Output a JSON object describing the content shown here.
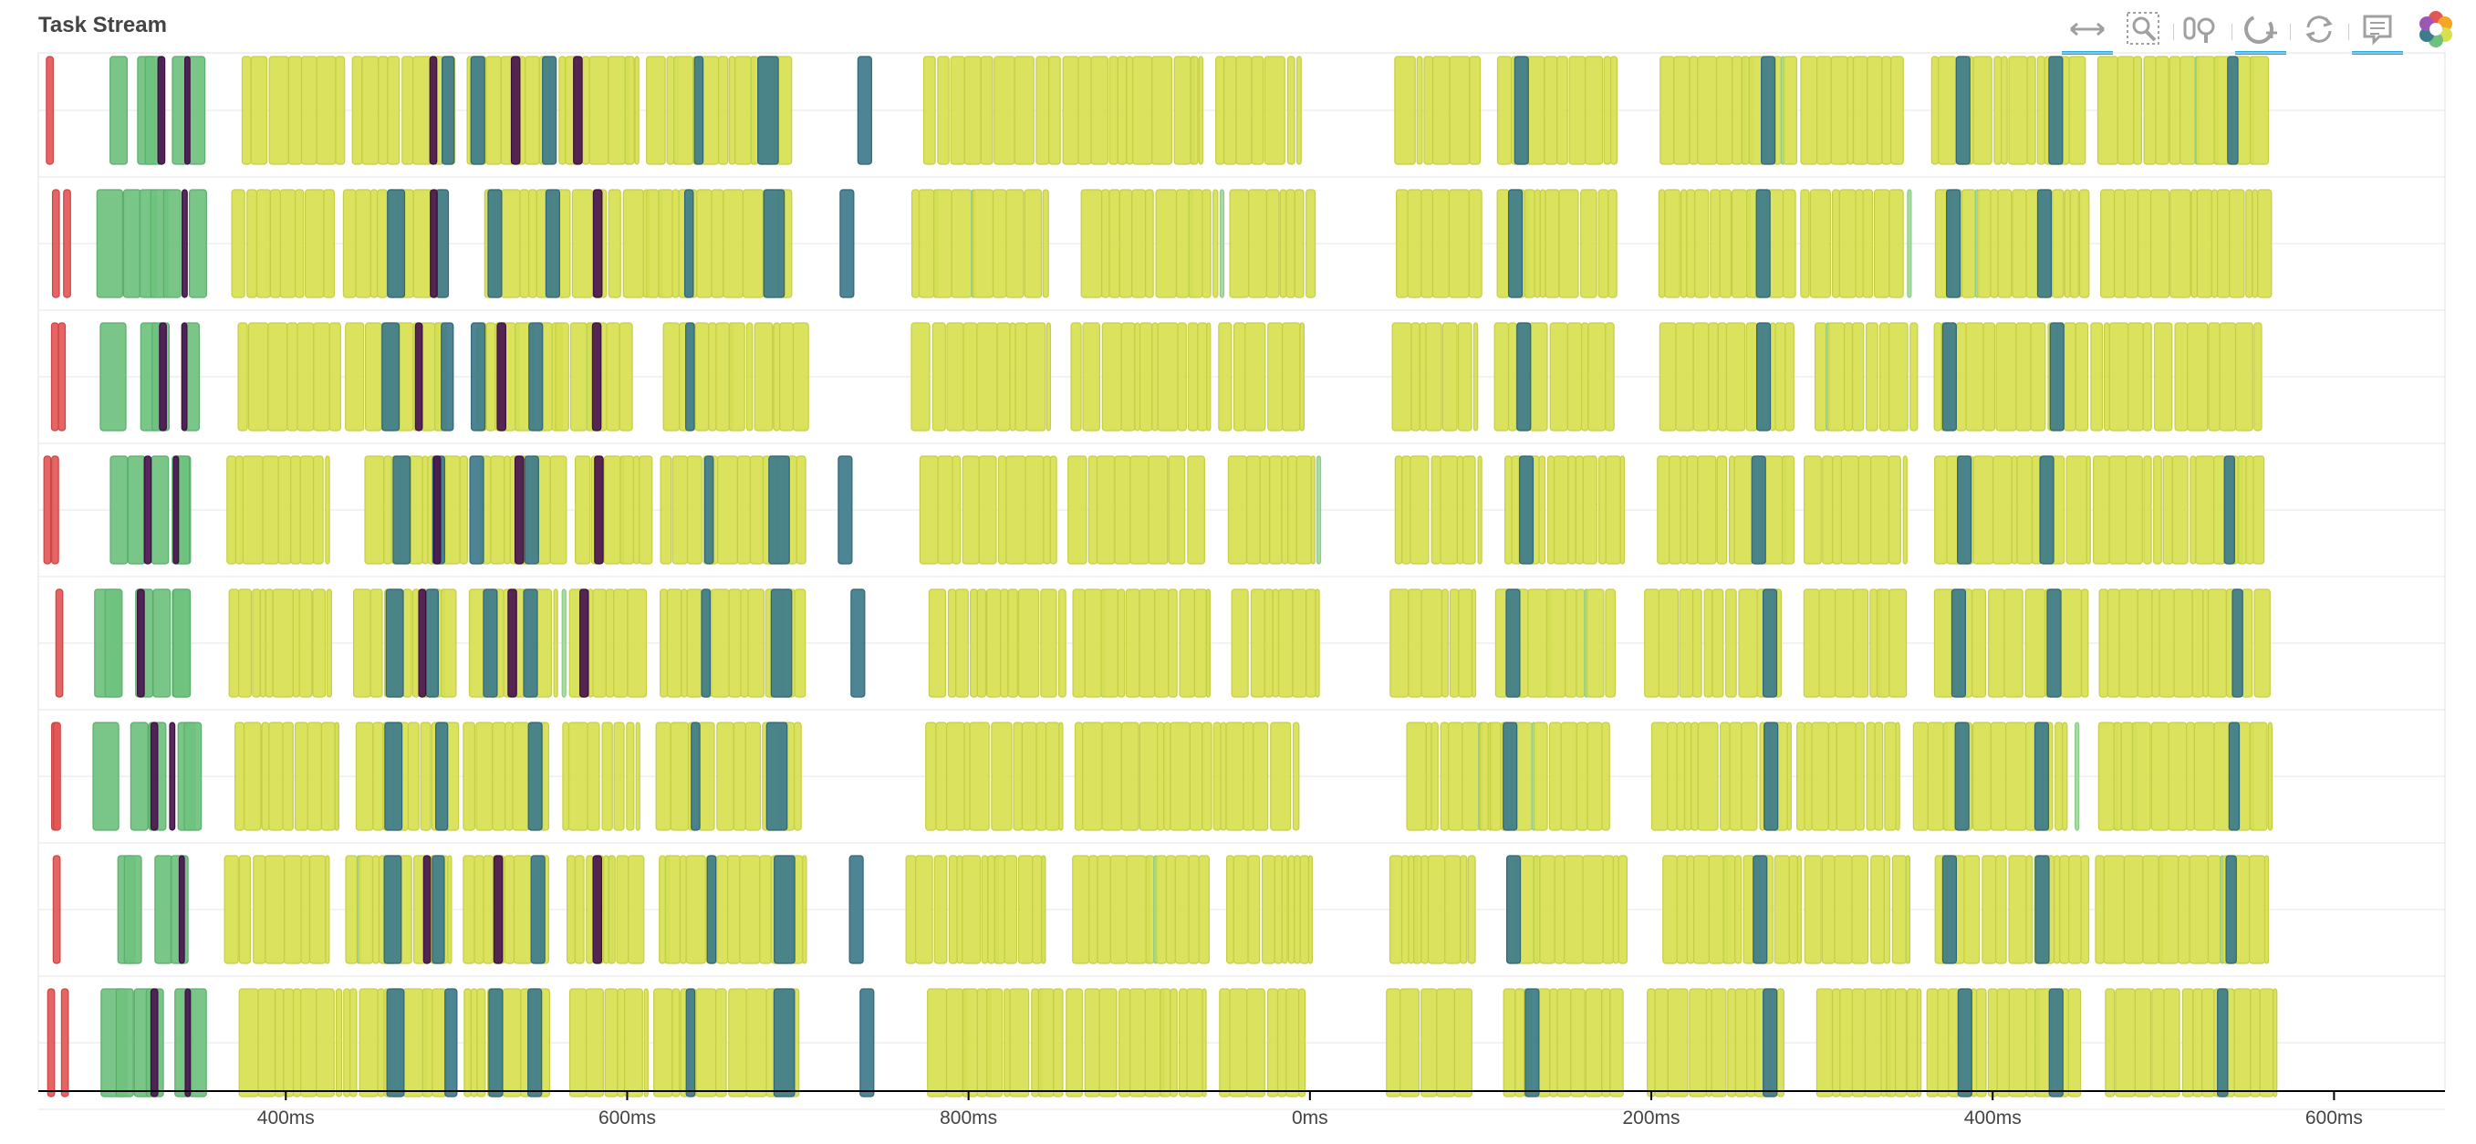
{
  "title": "Task Stream",
  "toolbar": [
    {
      "name": "xpan-tool",
      "active": true
    },
    {
      "name": "box-zoom-tool",
      "active": false
    },
    {
      "name": "wheel-zoom-tool",
      "active": false
    },
    {
      "name": "xwheel-zoom-tool",
      "active": true
    },
    {
      "name": "reset-tool",
      "active": false
    },
    {
      "name": "hover-tool",
      "active": true
    },
    {
      "name": "bokeh-logo",
      "active": false
    }
  ],
  "colors": {
    "yellow": "#d8e04f",
    "teal": "#3e7b8c",
    "purple": "#4a1550",
    "green": "#6fc17e",
    "lightgreen": "#a0d99a",
    "red": "#e45756",
    "grid": "#e6e6e6",
    "axis": "#000000"
  },
  "chart_data": {
    "type": "gantt",
    "title": "Task Stream",
    "xlabel": "",
    "ylabel": "",
    "x_ticks": [
      "400ms",
      "600ms",
      "800ms",
      "0ms",
      "200ms",
      "400ms",
      "600ms"
    ],
    "x_tick_values": [
      400,
      600,
      800,
      1000,
      1200,
      1400,
      1600
    ],
    "xlim": [
      255,
      1665
    ],
    "rows": 8,
    "grid": true,
    "legend": "none",
    "series": [
      {
        "color": "green",
        "spans": [
          [
            285,
            300
          ],
          [
            300,
            310
          ],
          [
            310,
            320
          ],
          [
            320,
            330
          ],
          [
            330,
            340
          ],
          [
            340,
            350
          ]
        ]
      },
      {
        "color": "yellow",
        "spans": [
          [
            370,
            430
          ],
          [
            440,
            500
          ],
          [
            510,
            560
          ],
          [
            565,
            610
          ],
          [
            615,
            700
          ],
          [
            770,
            850
          ],
          [
            860,
            940
          ],
          [
            950,
            1000
          ],
          [
            1050,
            1100
          ],
          [
            1110,
            1180
          ],
          [
            1200,
            1280
          ],
          [
            1290,
            1350
          ],
          [
            1360,
            1450
          ],
          [
            1460,
            1560
          ]
        ]
      },
      {
        "color": "teal",
        "spans": [
          [
            458,
            468
          ],
          [
            488,
            495
          ],
          [
            512,
            520
          ],
          [
            546,
            554
          ],
          [
            640,
            645
          ],
          [
            680,
            692
          ],
          [
            730,
            738
          ],
          [
            1120,
            1128
          ],
          [
            1260,
            1268
          ],
          [
            1375,
            1383
          ],
          [
            1535,
            1541
          ],
          [
            1430,
            1438
          ]
        ]
      },
      {
        "color": "purple",
        "spans": [
          [
            320,
            324
          ],
          [
            336,
            339
          ],
          [
            480,
            484
          ],
          [
            528,
            533
          ],
          [
            575,
            580
          ]
        ]
      },
      {
        "color": "red",
        "spans": [
          [
            264,
            268
          ],
          [
            266,
            270
          ]
        ]
      }
    ]
  }
}
